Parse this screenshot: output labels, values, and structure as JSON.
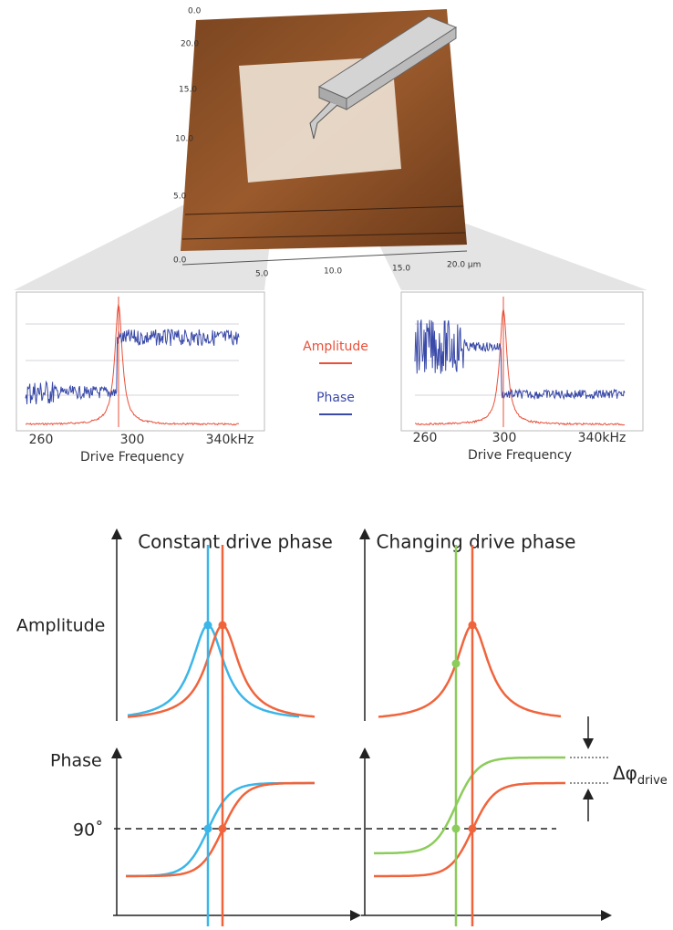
{
  "afm": {
    "axis_labels": [
      "0.0",
      "5.0",
      "10.0",
      "15.0",
      "20.0 µm"
    ],
    "side_labels": [
      "0.0",
      "5.0",
      "10.0",
      "15.0",
      "20.0"
    ]
  },
  "left_panel": {
    "ticks": [
      "260",
      "300",
      "340kHz"
    ],
    "xlabel": "Drive Frequency"
  },
  "right_panel": {
    "ticks": [
      "260",
      "300",
      "340kHz"
    ],
    "xlabel": "Drive Frequency"
  },
  "legend": {
    "amplitude": "Amplitude",
    "phase": "Phase"
  },
  "schematic": {
    "title_left": "Constant drive phase",
    "title_right": "Changing drive phase",
    "amplitude": "Amplitude",
    "phase": "Phase",
    "ninety": "90˚",
    "delta": "Δφ",
    "delta_sub": "drive"
  }
}
